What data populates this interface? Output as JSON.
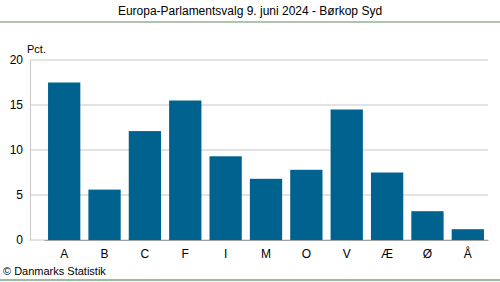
{
  "chart_data": {
    "type": "bar",
    "title": "Europa-Parlamentsvalg 9. juni 2024 - Børkop Syd",
    "y_label": "Pct.",
    "source": "© Danmarks Statistik",
    "categories": [
      "A",
      "B",
      "C",
      "F",
      "I",
      "M",
      "O",
      "V",
      "Æ",
      "Ø",
      "Å"
    ],
    "values": [
      17.5,
      5.6,
      12.1,
      15.5,
      9.3,
      6.8,
      7.8,
      14.5,
      7.5,
      3.2,
      1.2
    ],
    "color": "#00628f",
    "ylim": [
      0,
      20
    ],
    "yticks": [
      0,
      5,
      10,
      15,
      20
    ],
    "grid": true
  }
}
